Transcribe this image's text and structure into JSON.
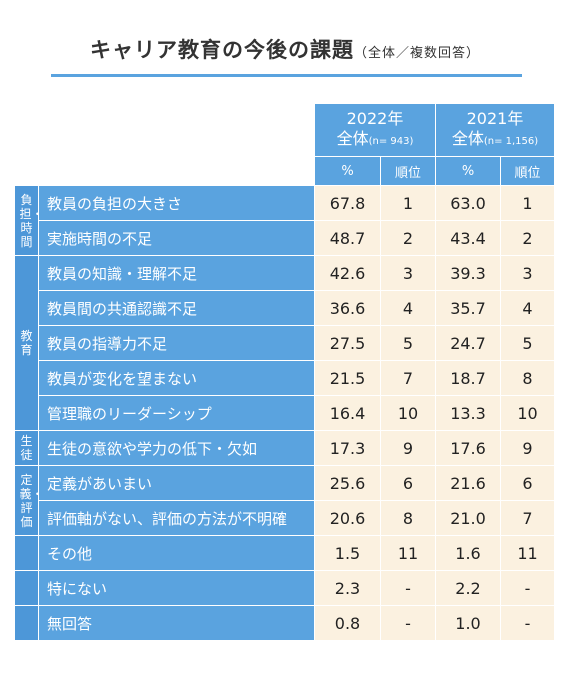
{
  "title": "キャリア教育の今後の課題",
  "title_note": "（全体／複数回答）",
  "headers": {
    "y2022": "2022年",
    "y2022_sub": "全体",
    "y2022_n": "(n= 943)",
    "y2021": "2021年",
    "y2021_sub": "全体",
    "y2021_n": "(n= 1,156)",
    "pct": "%",
    "rank": "順位"
  },
  "groups": [
    {
      "label": "負担・時間",
      "rows": 2
    },
    {
      "label": "教育",
      "rows": 5
    },
    {
      "label": "生徒",
      "rows": 1
    },
    {
      "label": "定義・評価",
      "rows": 2
    },
    {
      "label": "",
      "rows": 1
    },
    {
      "label": "",
      "rows": 1
    },
    {
      "label": "",
      "rows": 1
    }
  ],
  "chart_data": {
    "type": "table",
    "title": "キャリア教育の今後の課題",
    "columns": [
      "2022年 %",
      "2022年 順位",
      "2021年 %",
      "2021年 順位"
    ],
    "rows": [
      {
        "item": "教員の負担の大きさ",
        "p2022": "67.8",
        "r2022": "1",
        "p2021": "63.0",
        "r2021": "1"
      },
      {
        "item": "実施時間の不足",
        "p2022": "48.7",
        "r2022": "2",
        "p2021": "43.4",
        "r2021": "2"
      },
      {
        "item": "教員の知識・理解不足",
        "p2022": "42.6",
        "r2022": "3",
        "p2021": "39.3",
        "r2021": "3"
      },
      {
        "item": "教員間の共通認識不足",
        "p2022": "36.6",
        "r2022": "4",
        "p2021": "35.7",
        "r2021": "4"
      },
      {
        "item": "教員の指導力不足",
        "p2022": "27.5",
        "r2022": "5",
        "p2021": "24.7",
        "r2021": "5"
      },
      {
        "item": "教員が変化を望まない",
        "p2022": "21.5",
        "r2022": "7",
        "p2021": "18.7",
        "r2021": "8"
      },
      {
        "item": "管理職のリーダーシップ",
        "p2022": "16.4",
        "r2022": "10",
        "p2021": "13.3",
        "r2021": "10"
      },
      {
        "item": "生徒の意欲や学力の低下・欠如",
        "p2022": "17.3",
        "r2022": "9",
        "p2021": "17.6",
        "r2021": "9"
      },
      {
        "item": "定義があいまい",
        "p2022": "25.6",
        "r2022": "6",
        "p2021": "21.6",
        "r2021": "6"
      },
      {
        "item": "評価軸がない、評価の方法が不明確",
        "p2022": "20.6",
        "r2022": "8",
        "p2021": "21.0",
        "r2021": "7"
      },
      {
        "item": "その他",
        "p2022": "1.5",
        "r2022": "11",
        "p2021": "1.6",
        "r2021": "11"
      },
      {
        "item": "特にない",
        "p2022": "2.3",
        "r2022": "-",
        "p2021": "2.2",
        "r2021": "-"
      },
      {
        "item": "無回答",
        "p2022": "0.8",
        "r2022": "-",
        "p2021": "1.0",
        "r2021": "-"
      }
    ]
  },
  "colors": {
    "header": "#5aa3df",
    "group": "#4d97d8",
    "cell": "#fbf1e0",
    "rule": "#5aa3df"
  }
}
